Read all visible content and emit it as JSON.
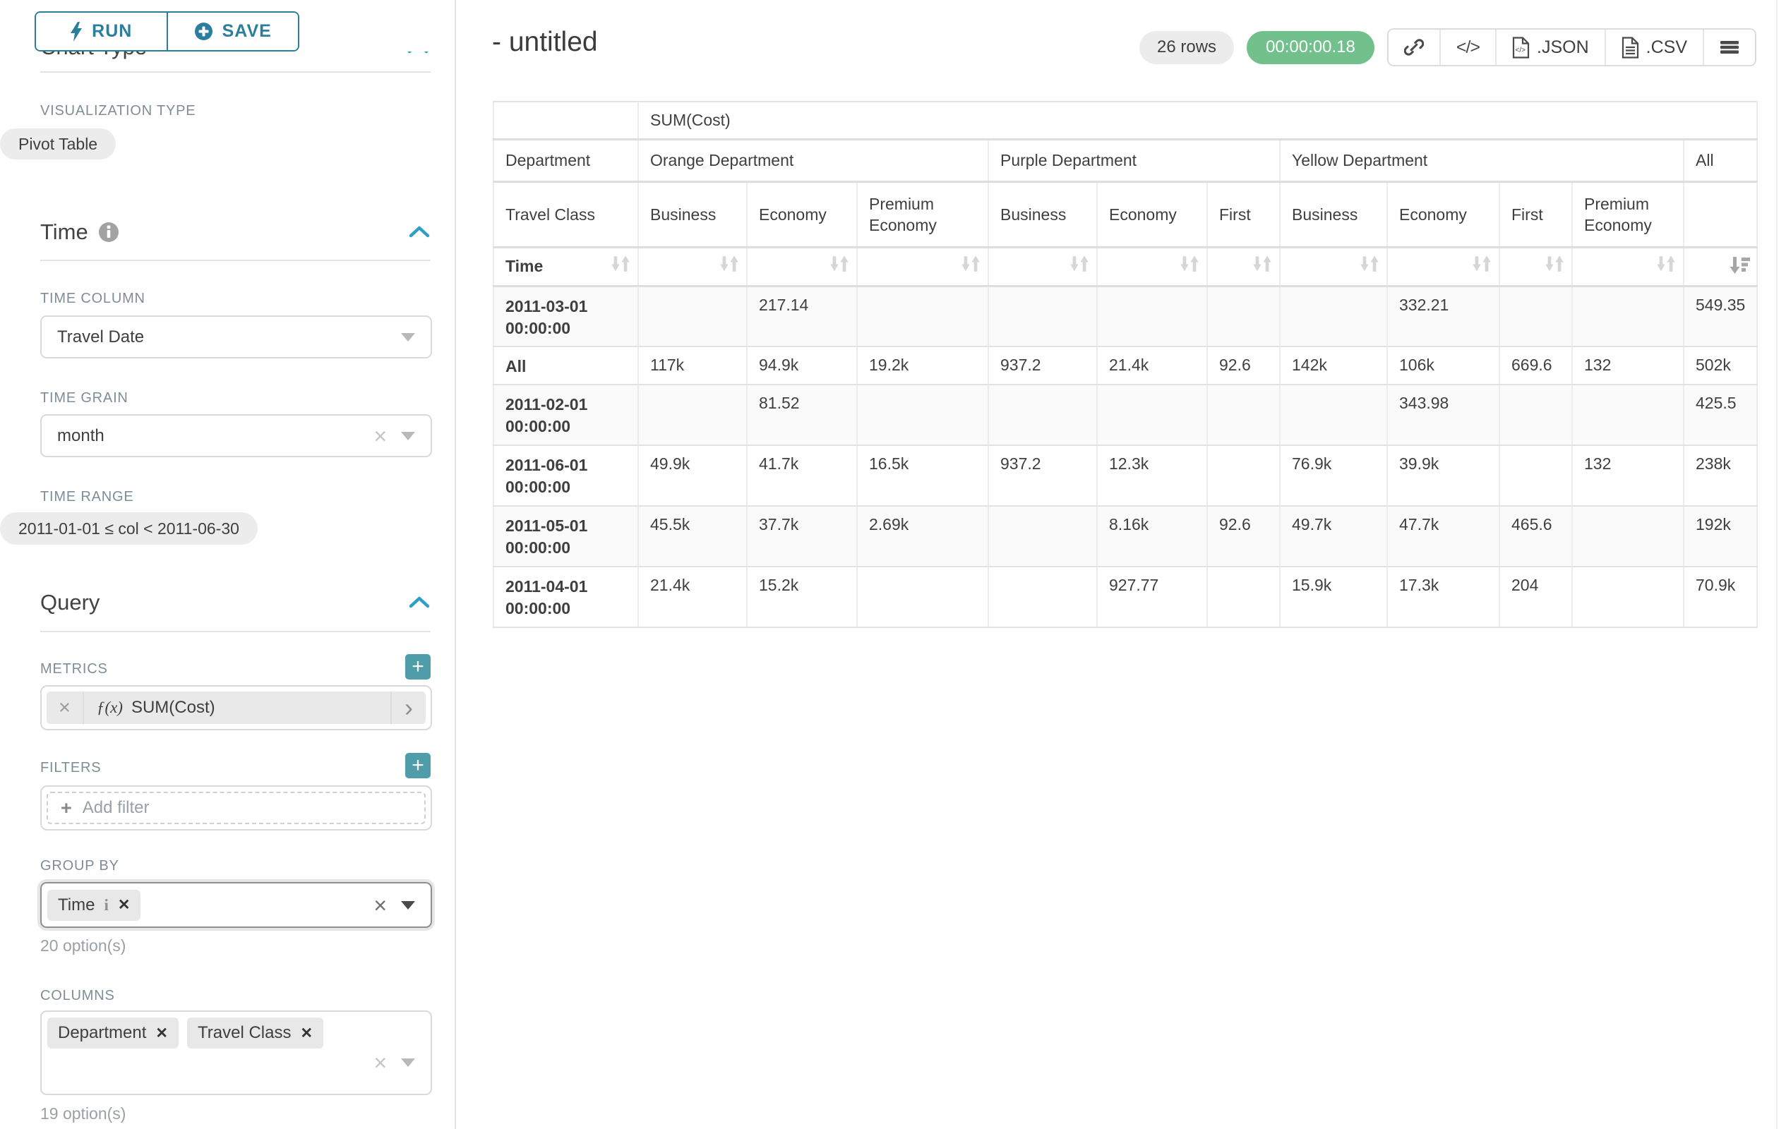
{
  "sidebar": {
    "run_button": "RUN",
    "save_button": "SAVE",
    "chart_type_heading": "Chart Type",
    "visualization": {
      "label": "VISUALIZATION TYPE",
      "value": "Pivot Table"
    },
    "time": {
      "heading": "Time",
      "time_column": {
        "label": "TIME COLUMN",
        "value": "Travel Date"
      },
      "time_grain": {
        "label": "TIME GRAIN",
        "value": "month"
      },
      "time_range": {
        "label": "TIME RANGE",
        "value": "2011-01-01 ≤ col < 2011-06-30"
      }
    },
    "query": {
      "heading": "Query",
      "metrics": {
        "label": "METRICS",
        "fx": "ƒ(x)",
        "value": "SUM(Cost)"
      },
      "filters": {
        "label": "FILTERS",
        "add_filter": "Add filter"
      },
      "group_by": {
        "label": "GROUP BY",
        "tags": [
          "Time"
        ],
        "hint": "20 option(s)"
      },
      "columns": {
        "label": "COLUMNS",
        "tags": [
          "Department",
          "Travel Class"
        ],
        "hint": "19 option(s)"
      }
    }
  },
  "header": {
    "title": "- untitled",
    "row_count": "26 rows",
    "timer": "00:00:00.18",
    "export_json": ".JSON",
    "export_csv": ".CSV"
  },
  "chart_data": {
    "type": "table",
    "title": "SUM(Cost) pivot table",
    "metric": "SUM(Cost)",
    "row_dimension": "Time",
    "column_dimensions": [
      "Department",
      "Travel Class"
    ],
    "row_header_labels": {
      "department_row": "Department",
      "travel_class_row": "Travel Class",
      "time_row": "Time"
    },
    "column_groups": [
      {
        "department": "Orange Department",
        "classes": [
          "Business",
          "Economy",
          "Premium Economy"
        ]
      },
      {
        "department": "Purple Department",
        "classes": [
          "Business",
          "Economy",
          "First"
        ]
      },
      {
        "department": "Yellow Department",
        "classes": [
          "Business",
          "Economy",
          "First",
          "Premium Economy"
        ]
      }
    ],
    "all_column_label": "All",
    "rows": [
      {
        "time": "2011-03-01 00:00:00",
        "values": [
          "",
          "217.14",
          "",
          "",
          "",
          "",
          "",
          "332.21",
          "",
          "",
          "549.35"
        ]
      },
      {
        "time": "All",
        "values": [
          "117k",
          "94.9k",
          "19.2k",
          "937.2",
          "21.4k",
          "92.6",
          "142k",
          "106k",
          "669.6",
          "132",
          "502k"
        ]
      },
      {
        "time": "2011-02-01 00:00:00",
        "values": [
          "",
          "81.52",
          "",
          "",
          "",
          "",
          "",
          "343.98",
          "",
          "",
          "425.5"
        ]
      },
      {
        "time": "2011-06-01 00:00:00",
        "values": [
          "49.9k",
          "41.7k",
          "16.5k",
          "937.2",
          "12.3k",
          "",
          "76.9k",
          "39.9k",
          "",
          "132",
          "238k"
        ]
      },
      {
        "time": "2011-05-01 00:00:00",
        "values": [
          "45.5k",
          "37.7k",
          "2.69k",
          "",
          "8.16k",
          "92.6",
          "49.7k",
          "47.7k",
          "465.6",
          "",
          "192k"
        ]
      },
      {
        "time": "2011-04-01 00:00:00",
        "values": [
          "21.4k",
          "15.2k",
          "",
          "",
          "927.77",
          "",
          "15.9k",
          "17.3k",
          "204",
          "",
          "70.9k"
        ]
      }
    ]
  },
  "colors": {
    "accent_teal": "#2b7f9d",
    "add_button_teal": "#4f9dab",
    "success_green": "#72c08c",
    "chevron_blue": "#2f9fc6"
  }
}
